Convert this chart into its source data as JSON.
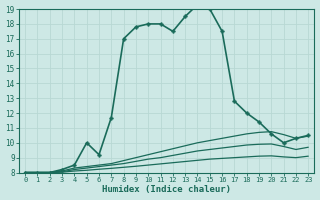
{
  "xlabel": "Humidex (Indice chaleur)",
  "ylabel": "",
  "xlim": [
    -0.5,
    23.5
  ],
  "ylim": [
    8,
    19
  ],
  "yticks": [
    8,
    9,
    10,
    11,
    12,
    13,
    14,
    15,
    16,
    17,
    18,
    19
  ],
  "xticks": [
    0,
    1,
    2,
    3,
    4,
    5,
    6,
    7,
    8,
    9,
    10,
    11,
    12,
    13,
    14,
    15,
    16,
    17,
    18,
    19,
    20,
    21,
    22,
    23
  ],
  "bg_color": "#cde8e5",
  "line_color": "#1a6b5a",
  "grid_color": "#b8d8d4",
  "lines": [
    {
      "x": [
        0,
        1,
        2,
        3,
        4,
        5,
        6,
        7,
        8,
        9,
        10,
        11,
        12,
        13,
        14,
        15,
        16,
        17,
        18,
        19,
        20,
        21,
        22,
        23
      ],
      "y": [
        8.0,
        8.0,
        8.0,
        8.2,
        8.5,
        10.0,
        9.2,
        11.7,
        17.0,
        17.8,
        18.0,
        18.0,
        17.5,
        18.5,
        19.3,
        19.0,
        17.5,
        12.8,
        12.0,
        11.4,
        10.6,
        10.0,
        10.3,
        10.5
      ],
      "marker": "P",
      "markersize": 2.5,
      "linewidth": 1.2
    },
    {
      "x": [
        0,
        1,
        2,
        3,
        4,
        5,
        6,
        7,
        8,
        9,
        10,
        11,
        12,
        13,
        14,
        15,
        16,
        17,
        18,
        19,
        20,
        21,
        22,
        23
      ],
      "y": [
        8.0,
        8.0,
        8.0,
        8.1,
        8.3,
        8.4,
        8.5,
        8.6,
        8.8,
        9.0,
        9.2,
        9.4,
        9.6,
        9.8,
        10.0,
        10.15,
        10.3,
        10.45,
        10.6,
        10.7,
        10.75,
        10.55,
        10.3,
        10.45
      ],
      "marker": null,
      "markersize": 0,
      "linewidth": 0.9
    },
    {
      "x": [
        0,
        1,
        2,
        3,
        4,
        5,
        6,
        7,
        8,
        9,
        10,
        11,
        12,
        13,
        14,
        15,
        16,
        17,
        18,
        19,
        20,
        21,
        22,
        23
      ],
      "y": [
        8.0,
        8.0,
        8.0,
        8.05,
        8.2,
        8.3,
        8.4,
        8.5,
        8.6,
        8.75,
        8.9,
        9.0,
        9.15,
        9.3,
        9.45,
        9.55,
        9.65,
        9.75,
        9.85,
        9.9,
        9.92,
        9.75,
        9.55,
        9.7
      ],
      "marker": null,
      "markersize": 0,
      "linewidth": 0.9
    },
    {
      "x": [
        0,
        1,
        2,
        3,
        4,
        5,
        6,
        7,
        8,
        9,
        10,
        11,
        12,
        13,
        14,
        15,
        16,
        17,
        18,
        19,
        20,
        21,
        22,
        23
      ],
      "y": [
        8.0,
        8.0,
        8.0,
        8.02,
        8.1,
        8.15,
        8.22,
        8.28,
        8.35,
        8.42,
        8.5,
        8.58,
        8.66,
        8.74,
        8.82,
        8.9,
        8.95,
        9.0,
        9.05,
        9.1,
        9.12,
        9.05,
        9.0,
        9.1
      ],
      "marker": null,
      "markersize": 0,
      "linewidth": 0.9
    }
  ]
}
